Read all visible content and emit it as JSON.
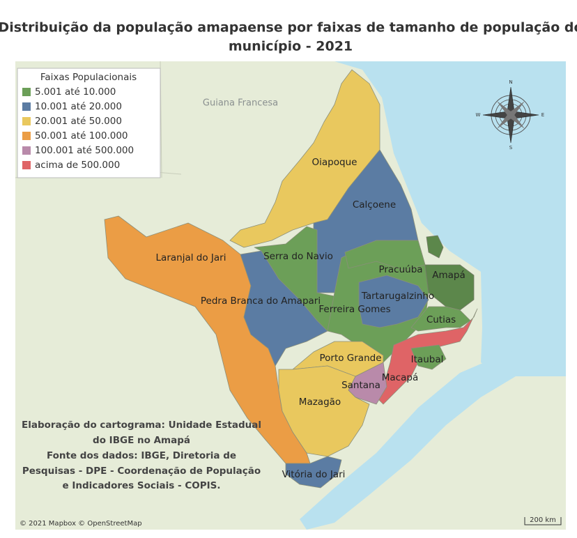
{
  "title": [
    "Distribuição da população amapaense por faixas de tamanho de população do",
    "município - 2021"
  ],
  "legend": {
    "title": "Faixas Populacionais",
    "items": [
      {
        "label": "5.001 até 10.000",
        "color": "#6c9f58"
      },
      {
        "label": "10.001 até 20.000",
        "color": "#5b7ca3"
      },
      {
        "label": "20.001 até 50.000",
        "color": "#e9c85e"
      },
      {
        "label": "50.001 até 100.000",
        "color": "#eb9d45"
      },
      {
        "label": "100.001 até 500.000",
        "color": "#b98aaa"
      },
      {
        "label": "acima de 500.000",
        "color": "#df6466"
      }
    ]
  },
  "region_label": "Guiana Francesa",
  "municipalities": [
    "Oiapoque",
    "Calçoene",
    "Laranjal do Jari",
    "Serra do Navio",
    "Pracuúba",
    "Amapá",
    "Pedra Branca do Amapari",
    "Tartarugalzinho",
    "Ferreira Gomes",
    "Cutias",
    "Porto Grande",
    "Itaubal",
    "Macapá",
    "Santana",
    "Mazagão",
    "Vitória do Jari"
  ],
  "notes": [
    "Elaboração do cartograma: Unidade Estadual",
    "do IBGE no Amapá",
    "Fonte dos dados: IBGE, Diretoria de",
    "Pesquisas - DPE - Coordenação de População",
    "e Indicadores Sociais - COPIS."
  ],
  "attribution": "© 2021 Mapbox © OpenStreetMap",
  "scale": "200 km",
  "compass": [
    "N",
    "E",
    "S",
    "W"
  ]
}
